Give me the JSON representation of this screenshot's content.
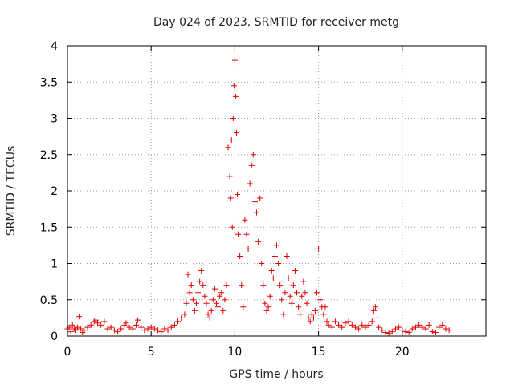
{
  "chart_data": {
    "type": "scatter",
    "title": "Day 024 of 2023, SRMTID for receiver metg",
    "xlabel": "GPS time / hours",
    "ylabel": "SRMTID / TECUs",
    "xlim": [
      0,
      25
    ],
    "ylim": [
      0,
      4
    ],
    "xticks": [
      0,
      5,
      10,
      15,
      20
    ],
    "xtick_labels": [
      "0",
      "5",
      "10",
      "15",
      "20"
    ],
    "yticks": [
      0,
      0.5,
      1,
      1.5,
      2,
      2.5,
      3,
      3.5,
      4
    ],
    "ytick_labels": [
      "0",
      "0.5",
      "1",
      "1.5",
      "2",
      "2.5",
      "3",
      "3.5",
      "4"
    ],
    "grid": true,
    "marker": "+",
    "color": "#e00000",
    "series": [
      {
        "name": "SRMTID",
        "points": [
          [
            0.0,
            0.1
          ],
          [
            0.1,
            0.12
          ],
          [
            0.2,
            0.06
          ],
          [
            0.3,
            0.15
          ],
          [
            0.4,
            0.1
          ],
          [
            0.5,
            0.08
          ],
          [
            0.6,
            0.12
          ],
          [
            0.7,
            0.27
          ],
          [
            0.8,
            0.1
          ],
          [
            0.9,
            0.05
          ],
          [
            1.0,
            0.08
          ],
          [
            1.2,
            0.12
          ],
          [
            1.4,
            0.15
          ],
          [
            1.6,
            0.2
          ],
          [
            1.7,
            0.22
          ],
          [
            1.8,
            0.18
          ],
          [
            2.0,
            0.15
          ],
          [
            2.2,
            0.2
          ],
          [
            2.4,
            0.1
          ],
          [
            2.6,
            0.12
          ],
          [
            2.8,
            0.08
          ],
          [
            3.0,
            0.06
          ],
          [
            3.2,
            0.1
          ],
          [
            3.4,
            0.15
          ],
          [
            3.5,
            0.18
          ],
          [
            3.7,
            0.12
          ],
          [
            3.9,
            0.1
          ],
          [
            4.1,
            0.15
          ],
          [
            4.2,
            0.22
          ],
          [
            4.4,
            0.12
          ],
          [
            4.6,
            0.08
          ],
          [
            4.8,
            0.1
          ],
          [
            5.0,
            0.12
          ],
          [
            5.2,
            0.1
          ],
          [
            5.4,
            0.08
          ],
          [
            5.6,
            0.06
          ],
          [
            5.8,
            0.1
          ],
          [
            6.0,
            0.08
          ],
          [
            6.2,
            0.12
          ],
          [
            6.4,
            0.15
          ],
          [
            6.6,
            0.2
          ],
          [
            6.8,
            0.25
          ],
          [
            7.0,
            0.3
          ],
          [
            7.1,
            0.45
          ],
          [
            7.2,
            0.85
          ],
          [
            7.3,
            0.6
          ],
          [
            7.4,
            0.7
          ],
          [
            7.5,
            0.5
          ],
          [
            7.6,
            0.35
          ],
          [
            7.7,
            0.45
          ],
          [
            7.8,
            0.6
          ],
          [
            7.9,
            0.75
          ],
          [
            8.0,
            0.9
          ],
          [
            8.1,
            0.7
          ],
          [
            8.2,
            0.55
          ],
          [
            8.3,
            0.45
          ],
          [
            8.4,
            0.3
          ],
          [
            8.5,
            0.25
          ],
          [
            8.6,
            0.35
          ],
          [
            8.7,
            0.5
          ],
          [
            8.8,
            0.65
          ],
          [
            8.9,
            0.45
          ],
          [
            9.0,
            0.4
          ],
          [
            9.1,
            0.55
          ],
          [
            9.2,
            0.6
          ],
          [
            9.3,
            0.35
          ],
          [
            9.4,
            0.5
          ],
          [
            9.5,
            0.7
          ],
          [
            9.6,
            2.6
          ],
          [
            9.7,
            2.2
          ],
          [
            9.75,
            1.9
          ],
          [
            9.8,
            2.7
          ],
          [
            9.85,
            1.5
          ],
          [
            9.9,
            3.0
          ],
          [
            9.95,
            3.45
          ],
          [
            10.0,
            3.8
          ],
          [
            10.05,
            3.3
          ],
          [
            10.1,
            2.8
          ],
          [
            10.15,
            1.95
          ],
          [
            10.2,
            1.4
          ],
          [
            10.3,
            1.1
          ],
          [
            10.4,
            0.7
          ],
          [
            10.5,
            0.4
          ],
          [
            10.6,
            1.6
          ],
          [
            10.7,
            1.4
          ],
          [
            10.8,
            1.2
          ],
          [
            10.9,
            2.1
          ],
          [
            11.0,
            2.35
          ],
          [
            11.1,
            2.5
          ],
          [
            11.2,
            1.85
          ],
          [
            11.3,
            1.7
          ],
          [
            11.4,
            1.3
          ],
          [
            11.5,
            1.9
          ],
          [
            11.6,
            1.0
          ],
          [
            11.7,
            0.7
          ],
          [
            11.8,
            0.45
          ],
          [
            11.9,
            0.35
          ],
          [
            12.0,
            0.4
          ],
          [
            12.1,
            0.55
          ],
          [
            12.2,
            0.9
          ],
          [
            12.3,
            0.8
          ],
          [
            12.4,
            1.1
          ],
          [
            12.5,
            1.25
          ],
          [
            12.6,
            1.0
          ],
          [
            12.7,
            0.7
          ],
          [
            12.8,
            0.5
          ],
          [
            12.9,
            0.3
          ],
          [
            13.0,
            0.6
          ],
          [
            13.1,
            1.1
          ],
          [
            13.2,
            0.8
          ],
          [
            13.3,
            0.55
          ],
          [
            13.4,
            0.45
          ],
          [
            13.5,
            0.7
          ],
          [
            13.6,
            0.9
          ],
          [
            13.7,
            0.6
          ],
          [
            13.8,
            0.4
          ],
          [
            13.9,
            0.3
          ],
          [
            14.0,
            0.55
          ],
          [
            14.1,
            0.75
          ],
          [
            14.2,
            0.6
          ],
          [
            14.3,
            0.45
          ],
          [
            14.4,
            0.25
          ],
          [
            14.5,
            0.2
          ],
          [
            14.6,
            0.3
          ],
          [
            14.7,
            0.25
          ],
          [
            14.8,
            0.35
          ],
          [
            14.9,
            0.6
          ],
          [
            15.0,
            1.2
          ],
          [
            15.1,
            0.5
          ],
          [
            15.2,
            0.4
          ],
          [
            15.3,
            0.3
          ],
          [
            15.4,
            0.4
          ],
          [
            15.5,
            0.2
          ],
          [
            15.6,
            0.15
          ],
          [
            15.8,
            0.12
          ],
          [
            16.0,
            0.2
          ],
          [
            16.2,
            0.15
          ],
          [
            16.4,
            0.12
          ],
          [
            16.6,
            0.18
          ],
          [
            16.8,
            0.2
          ],
          [
            17.0,
            0.15
          ],
          [
            17.2,
            0.12
          ],
          [
            17.4,
            0.1
          ],
          [
            17.6,
            0.15
          ],
          [
            17.8,
            0.12
          ],
          [
            18.0,
            0.15
          ],
          [
            18.2,
            0.2
          ],
          [
            18.3,
            0.35
          ],
          [
            18.4,
            0.4
          ],
          [
            18.5,
            0.25
          ],
          [
            18.6,
            0.12
          ],
          [
            18.8,
            0.08
          ],
          [
            19.0,
            0.05
          ],
          [
            19.2,
            0.04
          ],
          [
            19.4,
            0.06
          ],
          [
            19.6,
            0.1
          ],
          [
            19.8,
            0.12
          ],
          [
            20.0,
            0.08
          ],
          [
            20.2,
            0.06
          ],
          [
            20.4,
            0.05
          ],
          [
            20.6,
            0.1
          ],
          [
            20.8,
            0.12
          ],
          [
            21.0,
            0.15
          ],
          [
            21.2,
            0.12
          ],
          [
            21.4,
            0.1
          ],
          [
            21.6,
            0.15
          ],
          [
            21.8,
            0.06
          ],
          [
            22.0,
            0.05
          ],
          [
            22.2,
            0.12
          ],
          [
            22.4,
            0.15
          ],
          [
            22.6,
            0.1
          ],
          [
            22.8,
            0.08
          ]
        ]
      }
    ]
  }
}
